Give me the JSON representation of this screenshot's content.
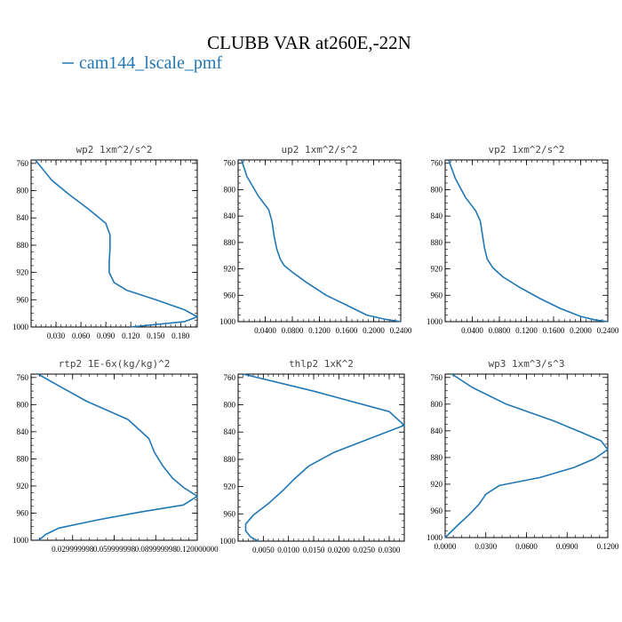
{
  "figure": {
    "title": "CLUBB VAR at260E,-22N",
    "legend_label": "cam144_lscale_pmf",
    "series_color": "#1f77b4"
  },
  "chart_data": [
    {
      "type": "line",
      "title": "wp2  1xm^2/s^2",
      "xlim": [
        0.0,
        0.2
      ],
      "ylim": [
        1000,
        755
      ],
      "xticks": [
        0.03,
        0.06,
        0.09,
        0.12,
        0.15,
        0.18
      ],
      "xtick_labels": [
        "0.030",
        "0.060",
        "0.090",
        "0.120",
        "0.150",
        "0.180"
      ],
      "yticks": [
        760,
        800,
        840,
        880,
        920,
        960,
        1000
      ],
      "series": [
        {
          "x": [
            0.005,
            0.025,
            0.045,
            0.07,
            0.09,
            0.095,
            0.095,
            0.094,
            0.094,
            0.1,
            0.115,
            0.15,
            0.185,
            0.2,
            0.185,
            0.12
          ],
          "y": [
            755,
            785,
            805,
            828,
            848,
            865,
            885,
            905,
            920,
            935,
            946,
            960,
            975,
            985,
            992,
            1000
          ]
        }
      ]
    },
    {
      "type": "line",
      "title": "up2  1xm^2/s^2",
      "xlim": [
        0.0,
        0.24
      ],
      "ylim": [
        1000,
        755
      ],
      "xticks": [
        0.04,
        0.08,
        0.12,
        0.16,
        0.2,
        0.24
      ],
      "xtick_labels": [
        "0.0400",
        "0.0800",
        "0.1200",
        "0.1600",
        "0.2000",
        "0.2400"
      ],
      "yticks": [
        760,
        800,
        840,
        880,
        920,
        960,
        1000
      ],
      "series": [
        {
          "x": [
            0.005,
            0.013,
            0.03,
            0.045,
            0.05,
            0.053,
            0.057,
            0.062,
            0.068,
            0.08,
            0.1,
            0.13,
            0.16,
            0.19,
            0.215,
            0.24
          ],
          "y": [
            755,
            780,
            810,
            830,
            848,
            870,
            890,
            905,
            915,
            925,
            940,
            960,
            975,
            990,
            996,
            1000
          ]
        }
      ]
    },
    {
      "type": "line",
      "title": "vp2  1xm^2/s^2",
      "xlim": [
        0.0,
        0.24
      ],
      "ylim": [
        1000,
        755
      ],
      "xticks": [
        0.04,
        0.08,
        0.12,
        0.16,
        0.2,
        0.24
      ],
      "xtick_labels": [
        "0.0400",
        "0.0800",
        "0.1200",
        "0.1600",
        "0.2000",
        "0.2400"
      ],
      "yticks": [
        760,
        800,
        840,
        880,
        920,
        960,
        1000
      ],
      "series": [
        {
          "x": [
            0.005,
            0.015,
            0.03,
            0.045,
            0.052,
            0.055,
            0.058,
            0.062,
            0.07,
            0.085,
            0.11,
            0.14,
            0.17,
            0.2,
            0.22,
            0.24
          ],
          "y": [
            755,
            783,
            812,
            832,
            848,
            868,
            888,
            905,
            918,
            932,
            948,
            965,
            980,
            992,
            997,
            1000
          ]
        }
      ]
    },
    {
      "type": "line",
      "title": "rtp2  1E-6x(kg/kg)^2",
      "xlim": [
        0.0,
        0.12
      ],
      "ylim": [
        1000,
        755
      ],
      "xticks": [
        0.03,
        0.06,
        0.09,
        0.12
      ],
      "xtick_labels": [
        "0.029999998",
        "0.059999998",
        "0.089999998",
        "0.120000000"
      ],
      "yticks": [
        760,
        800,
        840,
        880,
        920,
        960,
        1000
      ],
      "series": [
        {
          "x": [
            0.005,
            0.018,
            0.04,
            0.07,
            0.085,
            0.089,
            0.095,
            0.102,
            0.11,
            0.12,
            0.11,
            0.08,
            0.048,
            0.02,
            0.01,
            0.008,
            0.005
          ],
          "y": [
            755,
            770,
            795,
            822,
            850,
            870,
            890,
            908,
            922,
            935,
            948,
            958,
            970,
            982,
            992,
            996,
            1000
          ]
        }
      ]
    },
    {
      "type": "line",
      "title": "thlp2  1xK^2",
      "xlim": [
        0.0,
        0.033
      ],
      "ylim": [
        1000,
        755
      ],
      "xticks": [
        0.005,
        0.01,
        0.015,
        0.02,
        0.025,
        0.03
      ],
      "xtick_labels": [
        "0.0050",
        "0.0100",
        "0.0150",
        "0.0200",
        "0.0250",
        "0.0300"
      ],
      "yticks": [
        760,
        800,
        840,
        880,
        920,
        960,
        1000
      ],
      "series": [
        {
          "x": [
            0.001,
            0.015,
            0.03,
            0.033,
            0.026,
            0.019,
            0.014,
            0.011,
            0.009,
            0.006,
            0.003,
            0.0015,
            0.0015,
            0.0025,
            0.004
          ],
          "y": [
            755,
            780,
            810,
            830,
            850,
            870,
            890,
            910,
            925,
            945,
            962,
            975,
            985,
            994,
            1000
          ]
        }
      ]
    },
    {
      "type": "line",
      "title": "wp3  1xm^3/s^3",
      "xlim": [
        0.0,
        0.12
      ],
      "ylim": [
        1000,
        755
      ],
      "xticks": [
        0.0,
        0.03,
        0.06,
        0.09,
        0.12
      ],
      "xtick_labels": [
        "0.0000",
        "0.0300",
        "0.0600",
        "0.0900",
        "0.1200"
      ],
      "yticks": [
        760,
        800,
        840,
        880,
        920,
        960,
        1000
      ],
      "series": [
        {
          "x": [
            0.005,
            0.02,
            0.045,
            0.08,
            0.1,
            0.115,
            0.12,
            0.11,
            0.095,
            0.07,
            0.04,
            0.03,
            0.025,
            0.018,
            0.01,
            0.005,
            0.0
          ],
          "y": [
            755,
            775,
            800,
            825,
            842,
            855,
            868,
            882,
            895,
            910,
            922,
            935,
            950,
            965,
            980,
            990,
            1000
          ]
        }
      ]
    }
  ]
}
